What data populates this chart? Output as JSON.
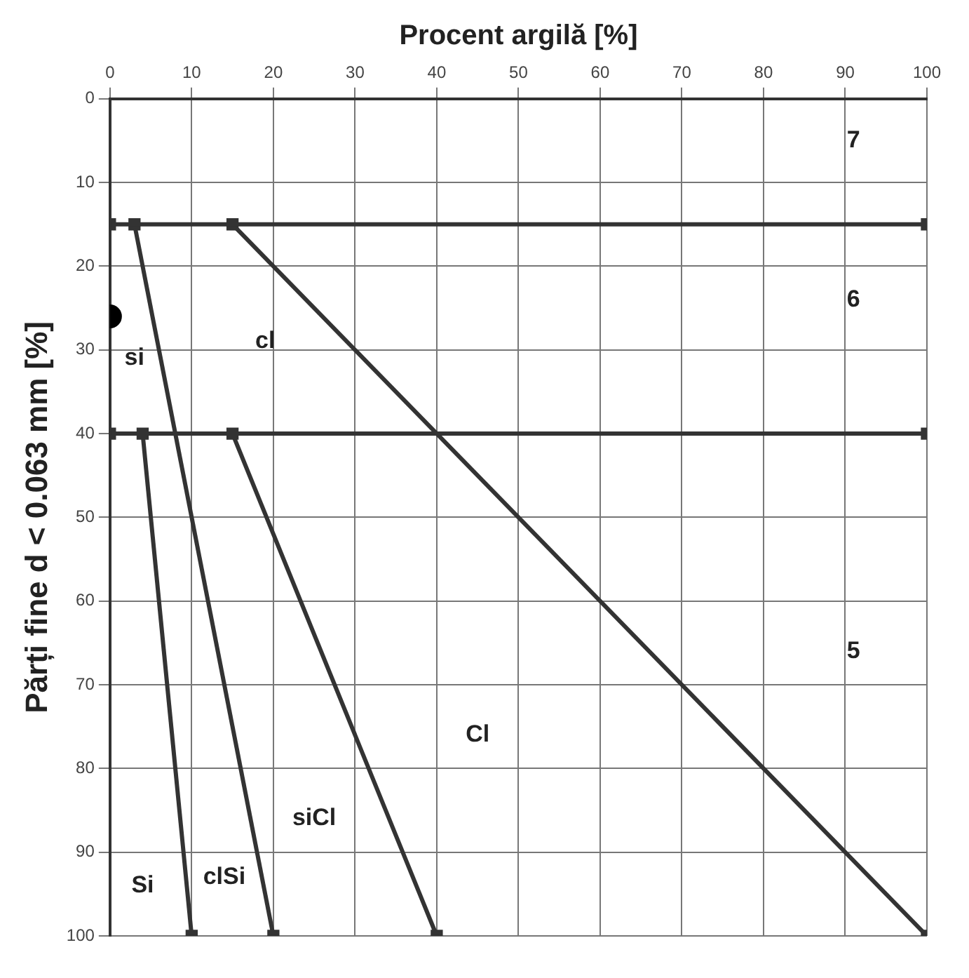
{
  "chart_data": {
    "type": "line",
    "xlabel": "Procent argilă [%]",
    "ylabel": "Părți fine d < 0.063 mm [%]",
    "xlim": [
      0,
      100
    ],
    "xticks": [
      0,
      10,
      20,
      30,
      40,
      50,
      60,
      70,
      80,
      90,
      100
    ],
    "ylim": [
      100,
      0
    ],
    "yticks": [
      0,
      10,
      20,
      30,
      40,
      50,
      60,
      70,
      80,
      90,
      100
    ],
    "grid": true,
    "legend": false,
    "marker": "square",
    "line_style": "solid",
    "series": [
      {
        "type": "line",
        "color": "#333333",
        "x": [
          0,
          100
        ],
        "values": [
          15,
          15
        ]
      },
      {
        "type": "line",
        "color": "#333333",
        "x": [
          0,
          100
        ],
        "values": [
          40,
          40
        ]
      },
      {
        "type": "line",
        "color": "#333333",
        "x": [
          15,
          100
        ],
        "values": [
          15,
          100
        ]
      },
      {
        "type": "line",
        "color": "#333333",
        "x": [
          3,
          20
        ],
        "values": [
          15,
          100
        ]
      },
      {
        "type": "line",
        "color": "#333333",
        "x": [
          4,
          10
        ],
        "values": [
          40,
          100
        ]
      },
      {
        "type": "line",
        "color": "#333333",
        "x": [
          15,
          40
        ],
        "values": [
          40,
          100
        ]
      },
      {
        "type": "scatter",
        "color": "#000000",
        "marker": "circle",
        "x": [
          0
        ],
        "values": [
          26
        ]
      }
    ],
    "annotations": [
      "7",
      "6",
      "5",
      "cl",
      "si",
      "Cl",
      "siCl",
      "clSi",
      "Si"
    ]
  }
}
